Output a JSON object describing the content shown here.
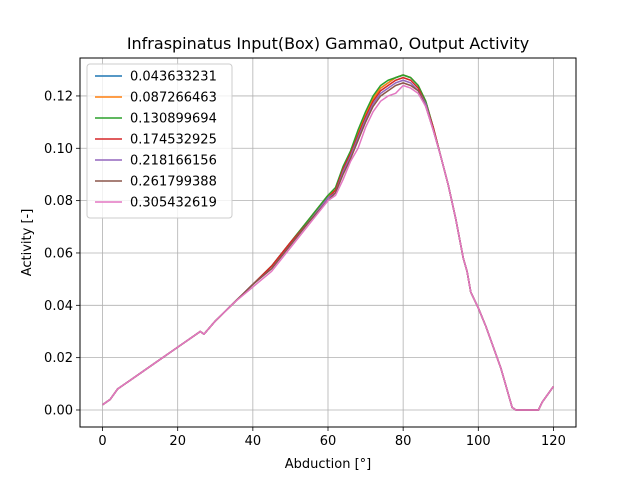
{
  "chart_data": {
    "type": "line",
    "title": "Infraspinatus Input(Box) Gamma0, Output Activity",
    "xlabel": "Abduction [°]",
    "ylabel": "Activity [-]",
    "xlim": [
      -6,
      126
    ],
    "ylim": [
      -0.0065,
      0.1345
    ],
    "xticks": [
      0,
      20,
      40,
      60,
      80,
      100,
      120
    ],
    "xtick_labels": [
      "0",
      "20",
      "40",
      "60",
      "80",
      "100",
      "120"
    ],
    "yticks": [
      0.0,
      0.02,
      0.04,
      0.06,
      0.08,
      0.1,
      0.12
    ],
    "ytick_labels": [
      "0.00",
      "0.02",
      "0.04",
      "0.06",
      "0.08",
      "0.10",
      "0.12"
    ],
    "grid": true,
    "legend_position": "top-left",
    "x": [
      0,
      2,
      4,
      6,
      10,
      15,
      20,
      25,
      26,
      27,
      30,
      35,
      40,
      45,
      50,
      55,
      60,
      62,
      64,
      66,
      68,
      70,
      72,
      74,
      76,
      78,
      80,
      82,
      84,
      86,
      88,
      90,
      92,
      94,
      96,
      97,
      98,
      100,
      102,
      104,
      106,
      107,
      108,
      109,
      110,
      112,
      114,
      116,
      117,
      118,
      120
    ],
    "series": [
      {
        "name": "0.043633231",
        "color": "#1f77b4",
        "values": [
          0.002,
          0.004,
          0.008,
          0.01,
          0.014,
          0.019,
          0.024,
          0.029,
          0.03,
          0.029,
          0.034,
          0.041,
          0.048,
          0.055,
          0.064,
          0.073,
          0.082,
          0.084,
          0.092,
          0.098,
          0.106,
          0.113,
          0.119,
          0.123,
          0.125,
          0.127,
          0.128,
          0.127,
          0.124,
          0.118,
          0.108,
          0.097,
          0.086,
          0.073,
          0.058,
          0.053,
          0.045,
          0.039,
          0.032,
          0.024,
          0.016,
          0.011,
          0.006,
          0.001,
          0.0,
          0.0,
          0.0,
          0.0,
          0.003,
          0.005,
          0.009
        ]
      },
      {
        "name": "0.087266463",
        "color": "#ff7f0e",
        "values": [
          0.002,
          0.004,
          0.008,
          0.01,
          0.014,
          0.019,
          0.024,
          0.029,
          0.03,
          0.029,
          0.034,
          0.041,
          0.048,
          0.055,
          0.064,
          0.073,
          0.082,
          0.084,
          0.092,
          0.098,
          0.106,
          0.113,
          0.119,
          0.123,
          0.125,
          0.127,
          0.128,
          0.127,
          0.124,
          0.118,
          0.108,
          0.097,
          0.086,
          0.073,
          0.058,
          0.053,
          0.045,
          0.039,
          0.032,
          0.024,
          0.016,
          0.011,
          0.006,
          0.001,
          0.0,
          0.0,
          0.0,
          0.0,
          0.003,
          0.005,
          0.009
        ]
      },
      {
        "name": "0.130899694",
        "color": "#2ca02c",
        "values": [
          0.002,
          0.004,
          0.008,
          0.01,
          0.014,
          0.019,
          0.024,
          0.029,
          0.03,
          0.029,
          0.034,
          0.041,
          0.048,
          0.055,
          0.064,
          0.073,
          0.082,
          0.085,
          0.093,
          0.099,
          0.107,
          0.114,
          0.12,
          0.124,
          0.126,
          0.127,
          0.128,
          0.127,
          0.124,
          0.118,
          0.108,
          0.097,
          0.086,
          0.073,
          0.058,
          0.053,
          0.045,
          0.039,
          0.032,
          0.024,
          0.016,
          0.011,
          0.006,
          0.001,
          0.0,
          0.0,
          0.0,
          0.0,
          0.003,
          0.005,
          0.009
        ]
      },
      {
        "name": "0.174532925",
        "color": "#d62728",
        "values": [
          0.002,
          0.004,
          0.008,
          0.01,
          0.014,
          0.019,
          0.024,
          0.029,
          0.03,
          0.029,
          0.034,
          0.041,
          0.048,
          0.055,
          0.064,
          0.072,
          0.081,
          0.084,
          0.092,
          0.098,
          0.105,
          0.112,
          0.118,
          0.122,
          0.124,
          0.126,
          0.127,
          0.126,
          0.123,
          0.117,
          0.108,
          0.097,
          0.086,
          0.073,
          0.058,
          0.053,
          0.045,
          0.039,
          0.032,
          0.024,
          0.016,
          0.011,
          0.006,
          0.001,
          0.0,
          0.0,
          0.0,
          0.0,
          0.003,
          0.005,
          0.009
        ]
      },
      {
        "name": "0.218166156",
        "color": "#9467bd",
        "values": [
          0.002,
          0.004,
          0.008,
          0.01,
          0.014,
          0.019,
          0.024,
          0.029,
          0.03,
          0.029,
          0.034,
          0.041,
          0.048,
          0.054,
          0.063,
          0.072,
          0.081,
          0.083,
          0.091,
          0.097,
          0.104,
          0.111,
          0.117,
          0.121,
          0.123,
          0.125,
          0.126,
          0.125,
          0.122,
          0.117,
          0.107,
          0.097,
          0.086,
          0.073,
          0.058,
          0.053,
          0.045,
          0.039,
          0.032,
          0.024,
          0.016,
          0.011,
          0.006,
          0.001,
          0.0,
          0.0,
          0.0,
          0.0,
          0.003,
          0.005,
          0.009
        ]
      },
      {
        "name": "0.261799388",
        "color": "#8c564b",
        "values": [
          0.002,
          0.004,
          0.008,
          0.01,
          0.014,
          0.019,
          0.024,
          0.029,
          0.03,
          0.029,
          0.034,
          0.041,
          0.048,
          0.054,
          0.063,
          0.072,
          0.08,
          0.083,
          0.09,
          0.096,
          0.103,
          0.11,
          0.116,
          0.12,
          0.122,
          0.124,
          0.125,
          0.124,
          0.122,
          0.116,
          0.107,
          0.097,
          0.086,
          0.073,
          0.058,
          0.053,
          0.045,
          0.039,
          0.032,
          0.024,
          0.016,
          0.011,
          0.006,
          0.001,
          0.0,
          0.0,
          0.0,
          0.0,
          0.003,
          0.005,
          0.009
        ]
      },
      {
        "name": "0.305432619",
        "color": "#e377c2",
        "values": [
          0.002,
          0.004,
          0.008,
          0.01,
          0.014,
          0.019,
          0.024,
          0.029,
          0.03,
          0.029,
          0.034,
          0.041,
          0.047,
          0.053,
          0.062,
          0.071,
          0.08,
          0.082,
          0.088,
          0.095,
          0.1,
          0.108,
          0.114,
          0.118,
          0.12,
          0.121,
          0.124,
          0.123,
          0.121,
          0.116,
          0.107,
          0.097,
          0.086,
          0.073,
          0.058,
          0.053,
          0.045,
          0.039,
          0.032,
          0.024,
          0.016,
          0.011,
          0.006,
          0.001,
          0.0,
          0.0,
          0.0,
          0.0,
          0.003,
          0.005,
          0.009
        ]
      }
    ]
  }
}
